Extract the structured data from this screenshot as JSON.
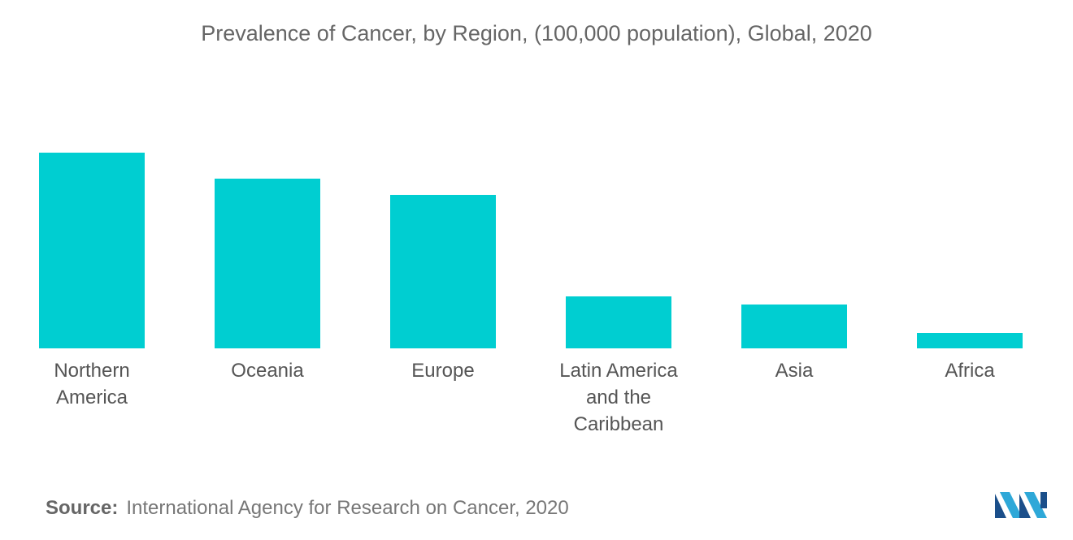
{
  "chart_data": {
    "type": "bar",
    "title": "Prevalence of Cancer, by Region, (100,000 population), Global, 2020",
    "categories": [
      "Northern America",
      "Oceania",
      "Europe",
      "Latin America and the Caribbean",
      "Asia",
      "Africa"
    ],
    "values": [
      241,
      209,
      189,
      64,
      54,
      19
    ],
    "color": "#00ced1",
    "ylim": [
      0,
      241
    ]
  },
  "source": {
    "label": "Source:",
    "text": "International Agency for Research on Cancer, 2020"
  }
}
